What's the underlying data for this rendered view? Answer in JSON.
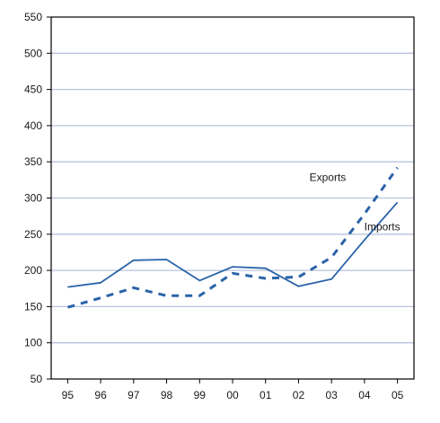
{
  "chart_data": {
    "type": "line",
    "title": "",
    "xlabel": "",
    "ylabel": "",
    "categories": [
      "95",
      "96",
      "97",
      "98",
      "99",
      "00",
      "01",
      "02",
      "03",
      "04",
      "05"
    ],
    "ylim": [
      50,
      550
    ],
    "yticks": [
      50,
      100,
      150,
      200,
      250,
      300,
      350,
      400,
      450,
      500,
      550
    ],
    "grid": true,
    "legend": "inline labels",
    "series": [
      {
        "name": "Exports",
        "style": "dashed",
        "color": "#2a63a8",
        "values": [
          149,
          162,
          176,
          165,
          165,
          196,
          189,
          191,
          218,
          278,
          342
        ]
      },
      {
        "name": "Imports",
        "style": "solid",
        "color": "#2a63a8",
        "values": [
          177,
          183,
          214,
          215,
          186,
          205,
          203,
          178,
          188,
          242,
          294
        ]
      }
    ]
  },
  "colors": {
    "axis": "#000000",
    "grid": "#b9c3de",
    "line": "#2a63a8"
  }
}
